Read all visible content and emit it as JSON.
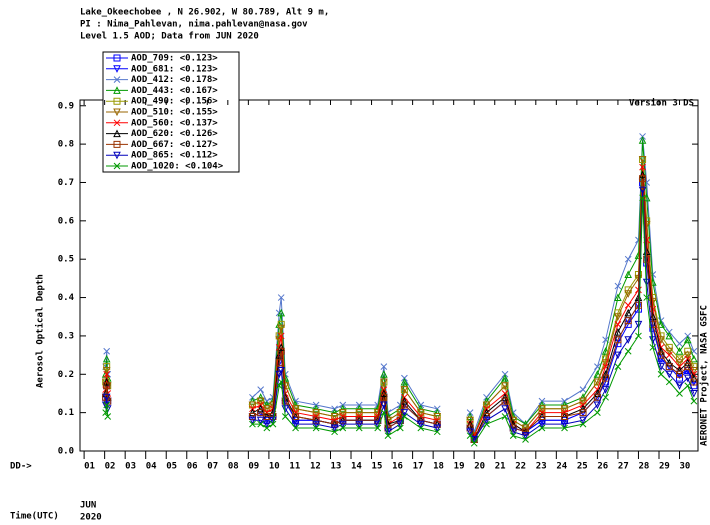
{
  "chart_data": {
    "type": "line",
    "title_lines": [
      "Lake_Okeechobee , N 26.902, W  80.789, Alt 9 m,",
      "PI : Nima_Pahlevan, nima.pahlevan@nasa.gov",
      "Level 1.5 AOD; Data from JUN 2020"
    ],
    "version": "Version 3 DS",
    "y_label": "Aerosol Optical Depth",
    "credit": "AERONET Project, NASA GSFC",
    "x_prefix": "DD->",
    "x_label": "Time(UTC)",
    "month": "JUN",
    "year": "2020",
    "xlim": [
      0.8,
      30.9
    ],
    "ylim": [
      0,
      0.915
    ],
    "xticks": [
      {
        "value": 1,
        "label": "01"
      },
      {
        "value": 2,
        "label": "02"
      },
      {
        "value": 3,
        "label": "03"
      },
      {
        "value": 4,
        "label": "04"
      },
      {
        "value": 5,
        "label": "05"
      },
      {
        "value": 6,
        "label": "06"
      },
      {
        "value": 7,
        "label": "07"
      },
      {
        "value": 8,
        "label": "08"
      },
      {
        "value": 9,
        "label": "09"
      },
      10,
      11,
      12,
      13,
      14,
      15,
      16,
      17,
      18,
      19,
      20,
      21,
      22,
      23,
      24,
      25,
      26,
      27,
      28,
      29,
      30
    ],
    "yticks": [
      {
        "value": 0,
        "label": "0.0"
      },
      0.1,
      0.2,
      0.3,
      0.4,
      0.5,
      0.6,
      0.7,
      0.8,
      0.9
    ],
    "x": [
      2.05,
      2.1,
      2.15,
      5.5,
      9.2,
      9.6,
      9.9,
      10.2,
      10.5,
      10.6,
      10.8,
      11.3,
      12.3,
      13.2,
      13.6,
      14.4,
      15.3,
      15.6,
      15.8,
      16.4,
      16.6,
      17.4,
      18.2,
      19.0,
      19.8,
      20.0,
      20.6,
      21.5,
      21.9,
      22.5,
      23.3,
      24.4,
      25.3,
      26.0,
      26.4,
      27.0,
      27.5,
      28.0,
      28.2,
      28.4,
      28.7,
      29.1,
      29.5,
      30.0,
      30.4,
      30.7
    ],
    "series": [
      {
        "name": "AOD_709: <0.123>",
        "color": "#0000ff",
        "marker": "square",
        "values": [
          0.14,
          0.17,
          0.13,
          null,
          0.09,
          0.1,
          0.08,
          0.09,
          0.23,
          0.25,
          0.13,
          0.08,
          0.08,
          0.07,
          0.08,
          0.08,
          0.08,
          0.14,
          0.06,
          0.08,
          0.12,
          0.08,
          0.07,
          null,
          0.06,
          0.03,
          0.09,
          0.13,
          0.06,
          0.05,
          0.08,
          0.08,
          0.1,
          0.14,
          0.18,
          0.28,
          0.33,
          0.37,
          0.7,
          0.49,
          0.32,
          0.24,
          0.22,
          0.19,
          0.21,
          0.17
        ]
      },
      {
        "name": "AOD_681: <0.123>",
        "color": "#0000ff",
        "marker": "tri-down",
        "values": [
          0.14,
          0.17,
          0.13,
          null,
          0.09,
          0.1,
          0.08,
          0.09,
          0.23,
          0.25,
          0.13,
          0.08,
          0.08,
          0.07,
          0.08,
          0.08,
          0.08,
          0.14,
          0.06,
          0.08,
          0.12,
          0.08,
          0.07,
          null,
          0.06,
          0.03,
          0.09,
          0.13,
          0.06,
          0.05,
          0.08,
          0.08,
          0.1,
          0.14,
          0.19,
          0.29,
          0.34,
          0.38,
          0.7,
          0.5,
          0.33,
          0.24,
          0.22,
          0.2,
          0.21,
          0.18
        ]
      },
      {
        "name": "AOD_412: <0.178>",
        "color": "#5577cc",
        "marker": "cross",
        "values": [
          0.22,
          0.26,
          0.2,
          null,
          0.14,
          0.16,
          0.13,
          0.14,
          0.36,
          0.4,
          0.2,
          0.13,
          0.12,
          0.11,
          0.12,
          0.12,
          0.12,
          0.22,
          0.1,
          0.12,
          0.19,
          0.12,
          0.11,
          null,
          0.1,
          0.05,
          0.14,
          0.2,
          0.1,
          0.07,
          0.13,
          0.13,
          0.16,
          0.22,
          0.29,
          0.43,
          0.5,
          0.55,
          0.82,
          0.7,
          0.46,
          0.34,
          0.31,
          0.28,
          0.3,
          0.26
        ]
      },
      {
        "name": "AOD_443: <0.167>",
        "color": "#009900",
        "marker": "tri-up",
        "values": [
          0.2,
          0.24,
          0.19,
          null,
          0.13,
          0.14,
          0.12,
          0.13,
          0.33,
          0.36,
          0.19,
          0.12,
          0.11,
          0.1,
          0.11,
          0.11,
          0.11,
          0.2,
          0.09,
          0.11,
          0.18,
          0.11,
          0.1,
          null,
          0.09,
          0.04,
          0.13,
          0.19,
          0.09,
          0.07,
          0.12,
          0.12,
          0.14,
          0.2,
          0.26,
          0.4,
          0.46,
          0.51,
          0.81,
          0.66,
          0.44,
          0.33,
          0.3,
          0.26,
          0.29,
          0.24
        ]
      },
      {
        "name": "AOD_490: <0.156>",
        "color": "#999900",
        "marker": "square",
        "values": [
          0.18,
          0.22,
          0.17,
          null,
          0.12,
          0.13,
          0.11,
          0.12,
          0.3,
          0.33,
          0.17,
          0.11,
          0.1,
          0.09,
          0.1,
          0.1,
          0.1,
          0.18,
          0.08,
          0.1,
          0.16,
          0.1,
          0.09,
          null,
          0.08,
          0.04,
          0.12,
          0.17,
          0.08,
          0.06,
          0.11,
          0.11,
          0.13,
          0.18,
          0.24,
          0.36,
          0.42,
          0.46,
          0.76,
          0.6,
          0.4,
          0.3,
          0.27,
          0.24,
          0.26,
          0.22
        ]
      },
      {
        "name": "AOD_510: <0.155>",
        "color": "#996600",
        "marker": "tri-down",
        "values": [
          0.18,
          0.21,
          0.17,
          null,
          0.12,
          0.13,
          0.11,
          0.12,
          0.29,
          0.32,
          0.17,
          0.11,
          0.1,
          0.09,
          0.1,
          0.1,
          0.1,
          0.18,
          0.08,
          0.1,
          0.16,
          0.1,
          0.09,
          null,
          0.08,
          0.04,
          0.12,
          0.17,
          0.08,
          0.06,
          0.11,
          0.11,
          0.13,
          0.18,
          0.23,
          0.35,
          0.41,
          0.45,
          0.76,
          0.59,
          0.39,
          0.29,
          0.26,
          0.23,
          0.25,
          0.21
        ]
      },
      {
        "name": "AOD_560: <0.137>",
        "color": "#ff0000",
        "marker": "cross",
        "values": [
          0.16,
          0.2,
          0.15,
          null,
          0.11,
          0.12,
          0.1,
          0.11,
          0.27,
          0.3,
          0.15,
          0.1,
          0.09,
          0.08,
          0.09,
          0.09,
          0.09,
          0.16,
          0.07,
          0.09,
          0.14,
          0.09,
          0.08,
          null,
          0.07,
          0.04,
          0.11,
          0.15,
          0.07,
          0.05,
          0.1,
          0.1,
          0.12,
          0.16,
          0.22,
          0.33,
          0.38,
          0.42,
          0.74,
          0.55,
          0.37,
          0.27,
          0.25,
          0.22,
          0.24,
          0.2
        ]
      },
      {
        "name": "AOD_620: <0.126>",
        "color": "#000000",
        "marker": "tri-up",
        "values": [
          0.15,
          0.18,
          0.14,
          null,
          0.1,
          0.11,
          0.09,
          0.1,
          0.25,
          0.27,
          0.14,
          0.09,
          0.08,
          0.07,
          0.08,
          0.08,
          0.08,
          0.15,
          0.07,
          0.08,
          0.13,
          0.08,
          0.07,
          null,
          0.07,
          0.03,
          0.1,
          0.14,
          0.07,
          0.05,
          0.09,
          0.09,
          0.11,
          0.15,
          0.2,
          0.31,
          0.36,
          0.4,
          0.72,
          0.52,
          0.35,
          0.26,
          0.23,
          0.21,
          0.23,
          0.19
        ]
      },
      {
        "name": "AOD_667: <0.127>",
        "color": "#993300",
        "marker": "square",
        "values": [
          0.14,
          0.17,
          0.13,
          null,
          0.09,
          0.1,
          0.09,
          0.09,
          0.23,
          0.26,
          0.13,
          0.09,
          0.08,
          0.07,
          0.08,
          0.08,
          0.08,
          0.14,
          0.06,
          0.08,
          0.12,
          0.08,
          0.07,
          null,
          0.06,
          0.03,
          0.09,
          0.13,
          0.06,
          0.05,
          0.09,
          0.09,
          0.1,
          0.14,
          0.19,
          0.29,
          0.34,
          0.38,
          0.71,
          0.5,
          0.33,
          0.25,
          0.22,
          0.2,
          0.22,
          0.18
        ]
      },
      {
        "name": "AOD_865: <0.112>",
        "color": "#0000bb",
        "marker": "tri-down",
        "values": [
          0.12,
          0.14,
          0.11,
          null,
          0.08,
          0.08,
          0.07,
          0.08,
          0.2,
          0.21,
          0.11,
          0.07,
          0.07,
          0.06,
          0.07,
          0.07,
          0.07,
          0.12,
          0.05,
          0.07,
          0.1,
          0.07,
          0.06,
          null,
          0.05,
          0.03,
          0.08,
          0.11,
          0.05,
          0.04,
          0.07,
          0.07,
          0.08,
          0.12,
          0.16,
          0.25,
          0.29,
          0.33,
          0.68,
          0.44,
          0.29,
          0.22,
          0.2,
          0.17,
          0.19,
          0.15
        ]
      },
      {
        "name": "AOD_1020: <0.104>",
        "color": "#009900",
        "marker": "cross",
        "values": [
          0.1,
          0.12,
          0.09,
          null,
          0.07,
          0.07,
          0.06,
          0.07,
          0.17,
          0.18,
          0.09,
          0.06,
          0.06,
          0.05,
          0.06,
          0.06,
          0.06,
          0.1,
          0.04,
          0.06,
          0.09,
          0.06,
          0.05,
          null,
          0.04,
          0.02,
          0.07,
          0.09,
          0.04,
          0.03,
          0.06,
          0.06,
          0.07,
          0.1,
          0.14,
          0.22,
          0.26,
          0.3,
          0.66,
          0.4,
          0.27,
          0.2,
          0.18,
          0.15,
          0.17,
          0.13
        ]
      }
    ]
  }
}
